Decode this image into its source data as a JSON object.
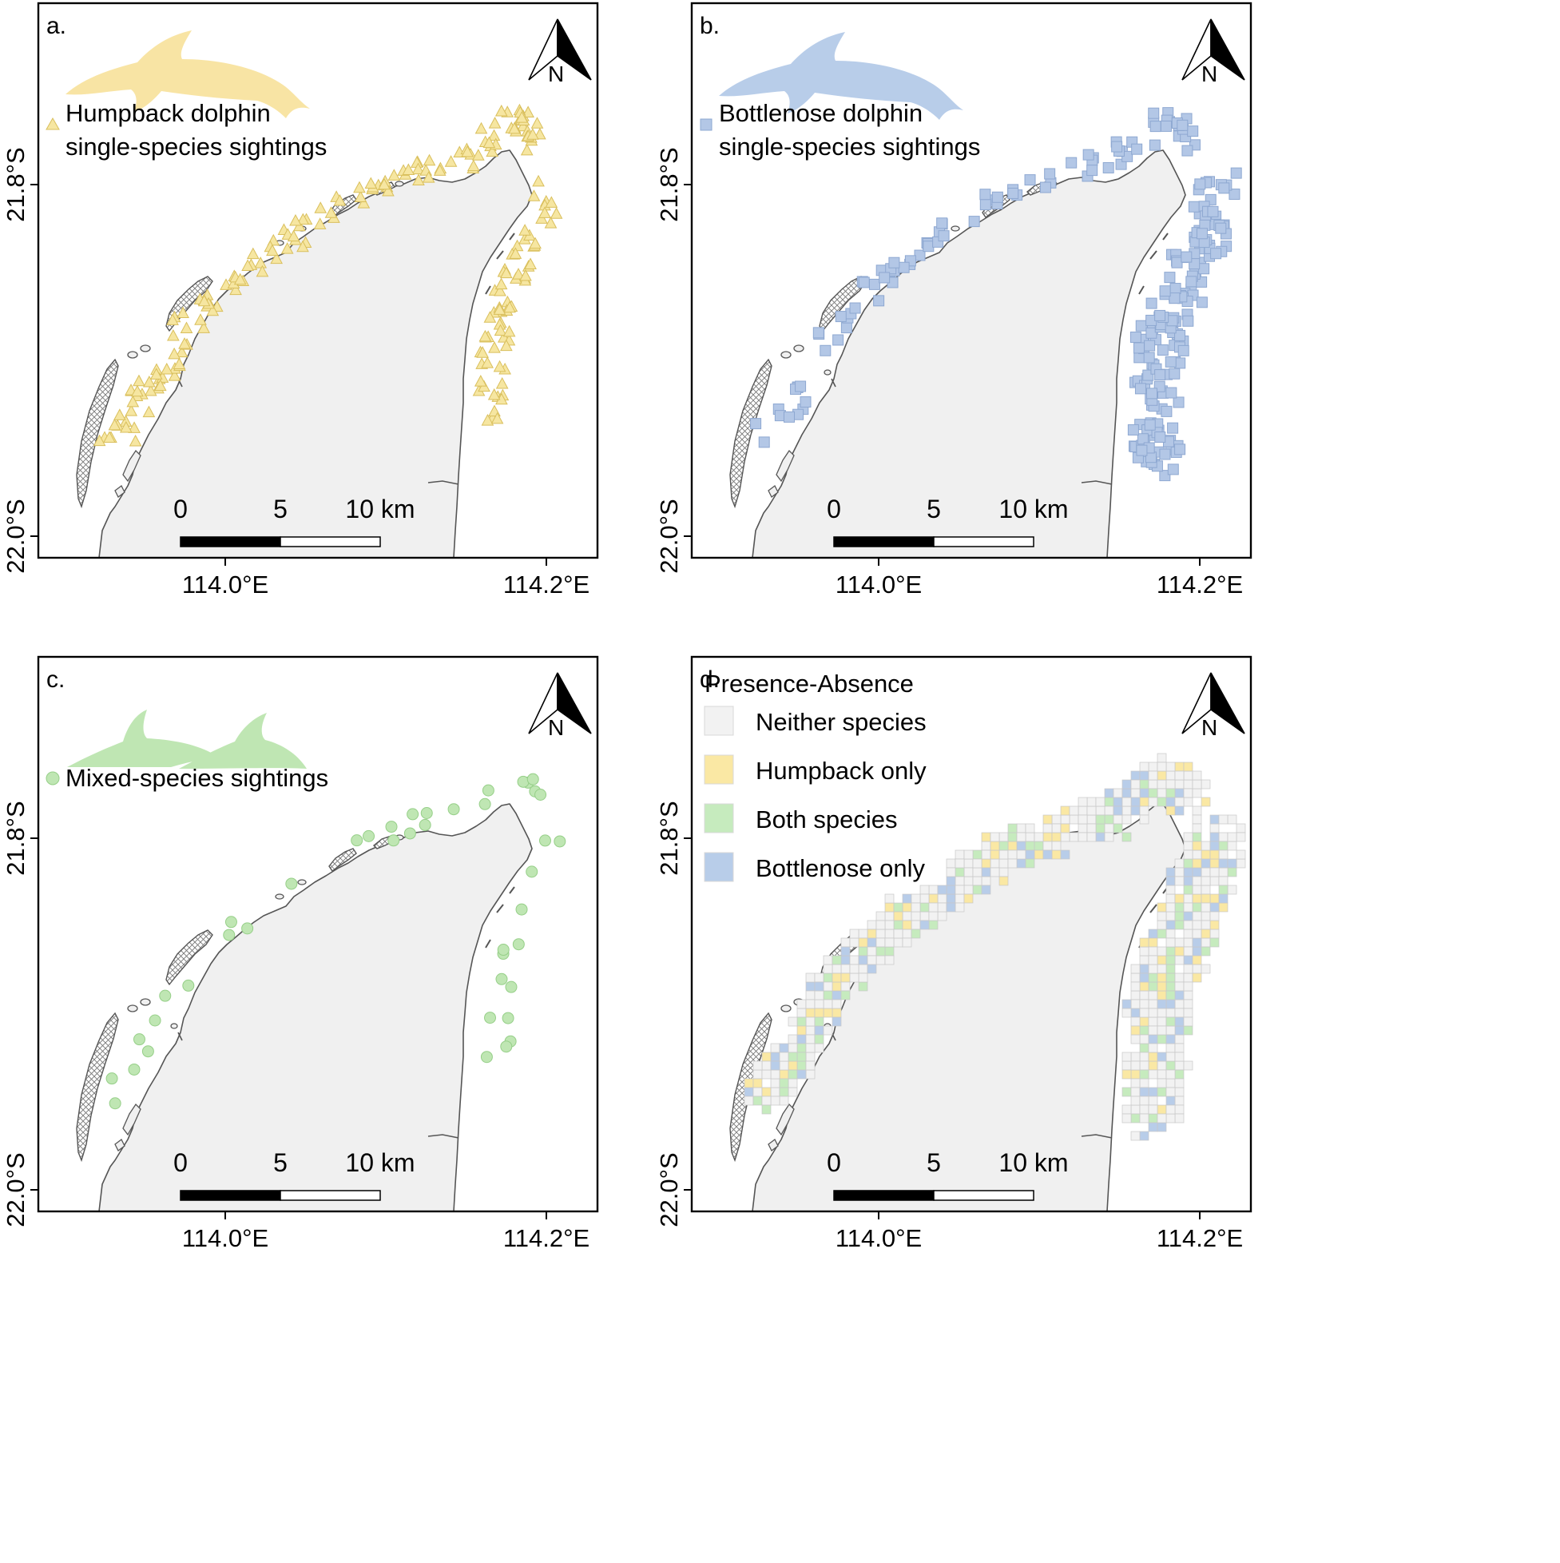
{
  "figure": {
    "panels": [
      {
        "id": "a",
        "label": "a.",
        "legend": [
          "Humpback dolphin",
          "single-species sightings"
        ],
        "marker": "triangle",
        "color": "#f6e6a1",
        "stroke": "#d9bf5c",
        "silhouette_color": "#f8e4a4",
        "silhouette": "humpback-dolphin"
      },
      {
        "id": "b",
        "label": "b.",
        "legend": [
          "Bottlenose dolphin",
          "single-species sightings"
        ],
        "marker": "square",
        "color": "#b3c7e6",
        "stroke": "#8ea8d1",
        "silhouette_color": "#b8cde9",
        "silhouette": "bottlenose-dolphin"
      },
      {
        "id": "c",
        "label": "c.",
        "legend": [
          "Mixed-species sightings"
        ],
        "marker": "circle",
        "color": "#bfe6b3",
        "stroke": "#96cf88",
        "silhouette_color": "#bfe6b3",
        "silhouette": "two-dolphins"
      },
      {
        "id": "d",
        "label": "d.",
        "legend_title": "Presence-Absence",
        "legend_items": [
          {
            "label": "Neither species",
            "color": "#f2f2f2"
          },
          {
            "label": "Humpback only",
            "color": "#fae8a4"
          },
          {
            "label": "Both species",
            "color": "#c6ebbe"
          },
          {
            "label": "Bottlenose only",
            "color": "#b8cde9"
          }
        ]
      }
    ],
    "axes": {
      "x_ticks": [
        "114.0°E",
        "114.2°E"
      ],
      "y_ticks": [
        "21.8°S",
        "22.0°S"
      ]
    },
    "scale_bar": {
      "labels": [
        "0",
        "5",
        "10 km"
      ]
    },
    "north_arrow": {
      "label": "N"
    }
  }
}
